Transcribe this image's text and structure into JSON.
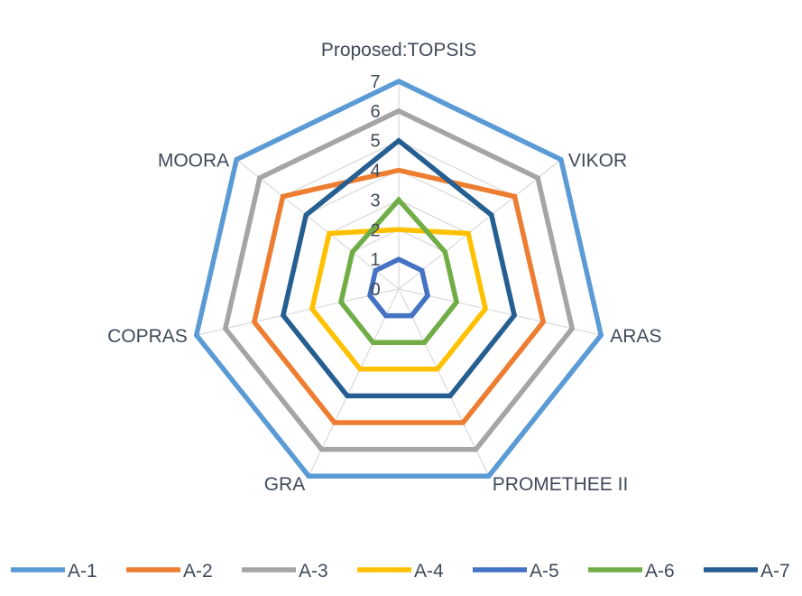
{
  "chart_data": {
    "type": "radar",
    "categories": [
      "Proposed:TOPSIS",
      "VIKOR",
      "ARAS",
      "PROMETHEE II",
      "GRA",
      "COPRAS",
      "MOORA"
    ],
    "rlim": [
      0,
      7
    ],
    "ticks": [
      "0",
      "1",
      "2",
      "3",
      "4",
      "5",
      "6",
      "7"
    ],
    "grid": true,
    "legend_position": "bottom",
    "series": [
      {
        "name": "A-1",
        "color": "#5b9bd5",
        "values": [
          7,
          7,
          7,
          7,
          7,
          7,
          7
        ]
      },
      {
        "name": "A-2",
        "color": "#ed7d31",
        "values": [
          4,
          5,
          5,
          5,
          5,
          5,
          5
        ]
      },
      {
        "name": "A-3",
        "color": "#a5a5a5",
        "values": [
          6,
          6,
          6,
          6,
          6,
          6,
          6
        ]
      },
      {
        "name": "A-4",
        "color": "#ffc000",
        "values": [
          2,
          3,
          3,
          3,
          3,
          3,
          3
        ]
      },
      {
        "name": "A-5",
        "color": "#4472c4",
        "values": [
          1,
          1,
          1,
          1,
          1,
          1,
          1
        ]
      },
      {
        "name": "A-6",
        "color": "#70ad47",
        "values": [
          3,
          2,
          2,
          2,
          2,
          2,
          2
        ]
      },
      {
        "name": "A-7",
        "color": "#255e91",
        "values": [
          5,
          4,
          4,
          4,
          4,
          4,
          4
        ]
      }
    ]
  }
}
